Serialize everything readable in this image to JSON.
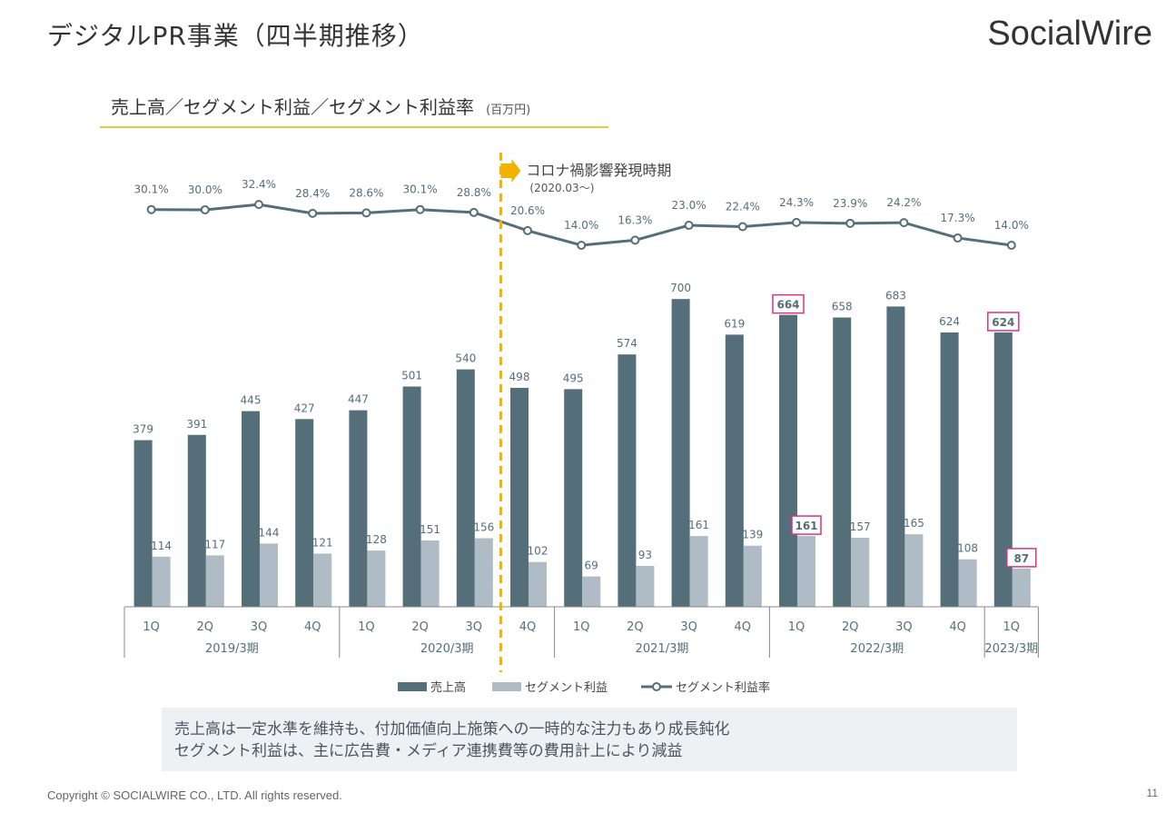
{
  "page": {
    "title": "デジタルPR事業（四半期推移）",
    "logo": "SocialWire",
    "subtitle": "売上高／セグメント利益／セグメント利益率",
    "subtitle_unit": "(百万円)",
    "summary_lines": [
      "売上高は一定水準を維持も、付加価値向上施策への一時的な注力もあり成長鈍化",
      "セグメント利益は、主に広告費・メディア連携費等の費用計上により減益"
    ],
    "copyright": "Copyright © SOCIALWIRE CO., LTD. All rights reserved.",
    "page_number": "11"
  },
  "chart_data": {
    "type": "bar",
    "categories": [
      "1Q",
      "2Q",
      "3Q",
      "4Q",
      "1Q",
      "2Q",
      "3Q",
      "4Q",
      "1Q",
      "2Q",
      "3Q",
      "4Q",
      "1Q",
      "2Q",
      "3Q",
      "4Q",
      "1Q"
    ],
    "groups": [
      {
        "label": "2019/3期",
        "count": 4
      },
      {
        "label": "2020/3期",
        "count": 4
      },
      {
        "label": "2021/3期",
        "count": 4
      },
      {
        "label": "2022/3期",
        "count": 4
      },
      {
        "label": "2023/3期",
        "count": 1
      }
    ],
    "series": [
      {
        "name": "売上高",
        "kind": "bar",
        "color": "#546e7a",
        "values": [
          379,
          391,
          445,
          427,
          447,
          501,
          540,
          498,
          495,
          574,
          700,
          619,
          664,
          658,
          683,
          624,
          624
        ]
      },
      {
        "name": "セグメント利益",
        "kind": "bar",
        "color": "#b0bcc5",
        "values": [
          114,
          117,
          144,
          121,
          128,
          151,
          156,
          102,
          69,
          93,
          161,
          139,
          161,
          157,
          165,
          108,
          87
        ]
      },
      {
        "name": "セグメント利益率",
        "kind": "line",
        "color": "#546e7a",
        "values": [
          30.1,
          30.0,
          32.4,
          28.4,
          28.6,
          30.1,
          28.8,
          20.6,
          14.0,
          16.3,
          23.0,
          22.4,
          24.3,
          23.9,
          24.2,
          17.3,
          14.0
        ],
        "labels": [
          "30.1%",
          "30.0%",
          "32.4%",
          "28.4%",
          "28.6%",
          "30.1%",
          "28.8%",
          "20.6%",
          "14.0%",
          "16.3%",
          "23.0%",
          "22.4%",
          "24.3%",
          "23.9%",
          "24.2%",
          "17.3%",
          "14.0%"
        ]
      }
    ],
    "highlight": {
      "color": "#d63384",
      "bars": [
        {
          "series": 0,
          "index": 12
        },
        {
          "series": 1,
          "index": 12
        },
        {
          "series": 0,
          "index": 16
        },
        {
          "series": 1,
          "index": 16
        }
      ]
    },
    "annotation": {
      "text": "コロナ禍影響発現時期",
      "subtext": "(2020.03〜)",
      "after_index": 6,
      "color": "#f0b400"
    },
    "ylim": [
      0,
      800
    ],
    "legend_position": "bottom"
  }
}
